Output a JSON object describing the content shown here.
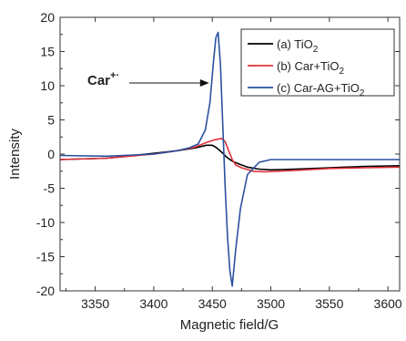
{
  "chart_data": {
    "type": "line",
    "xlabel": "Magnetic field/G",
    "ylabel": "Intensity",
    "xlim": [
      3320,
      3610
    ],
    "ylim": [
      -20,
      20
    ],
    "x_ticks": [
      3350,
      3400,
      3450,
      3500,
      3550,
      3600
    ],
    "x_tick_labels": [
      "3350",
      "3400",
      "3450",
      "3500",
      "3550",
      "3600"
    ],
    "y_ticks": [
      -20,
      -15,
      -10,
      -5,
      0,
      5,
      10,
      15,
      20
    ],
    "y_tick_labels": [
      "-20",
      "-15",
      "-10",
      "-5",
      "0",
      "5",
      "10",
      "15",
      "20"
    ],
    "legend_position": "top-right",
    "annotation": {
      "text": "Car",
      "superscript": "+·",
      "points_to": {
        "x": 3452,
        "y": 10.4
      }
    },
    "series": [
      {
        "name": "(a) TiO",
        "name_sub": "2",
        "color": "#000000",
        "x": [
          3320,
          3360,
          3400,
          3420,
          3435,
          3445,
          3450,
          3453,
          3456,
          3459,
          3462,
          3465,
          3468,
          3472,
          3480,
          3490,
          3500,
          3520,
          3550,
          3580,
          3610
        ],
        "y": [
          -0.8,
          -0.6,
          0.1,
          0.5,
          0.9,
          1.3,
          1.3,
          1.0,
          0.6,
          0.1,
          -0.4,
          -0.8,
          -1.1,
          -1.4,
          -1.9,
          -2.2,
          -2.3,
          -2.2,
          -2.0,
          -1.8,
          -1.7
        ]
      },
      {
        "name": "(b) Car+TiO",
        "name_sub": "2",
        "color": "#e0303a",
        "x": [
          3320,
          3360,
          3400,
          3420,
          3435,
          3445,
          3452,
          3458,
          3461,
          3464,
          3467,
          3470,
          3475,
          3485,
          3495,
          3520,
          3550,
          3580,
          3610
        ],
        "y": [
          -0.8,
          -0.6,
          0.0,
          0.5,
          1.0,
          1.7,
          2.1,
          2.3,
          1.8,
          0.5,
          -0.8,
          -1.6,
          -2.0,
          -2.5,
          -2.6,
          -2.4,
          -2.1,
          -2.0,
          -1.9
        ]
      },
      {
        "name": "(c) Car-AG+TiO",
        "name_sub": "2",
        "color": "#2b50a0",
        "x": [
          3320,
          3360,
          3400,
          3420,
          3430,
          3438,
          3444,
          3448,
          3451,
          3453,
          3455,
          3457,
          3459,
          3461,
          3463,
          3465,
          3467,
          3470,
          3474,
          3480,
          3490,
          3500,
          3550,
          3610
        ],
        "y": [
          -0.2,
          -0.3,
          0.0,
          0.5,
          0.9,
          1.5,
          3.5,
          7.5,
          13.5,
          17.0,
          17.8,
          13.0,
          4.0,
          -5.0,
          -12.0,
          -17.0,
          -19.3,
          -14.0,
          -8.0,
          -3.0,
          -1.2,
          -0.8,
          -0.8,
          -0.8
        ]
      }
    ]
  }
}
